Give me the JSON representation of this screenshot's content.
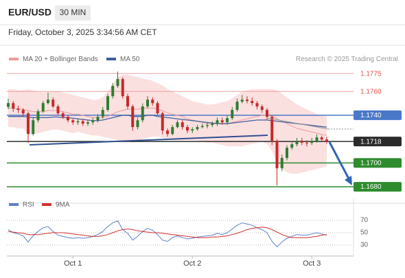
{
  "header": {
    "symbol": "EUR/USD",
    "timeframe": "30 MIN",
    "timestamp": "Friday, October 3, 2025 3:34:56 AM CET"
  },
  "chart_data": [
    {
      "type": "candlestick",
      "source": "Research © 2025 Trading Central",
      "up_color": "#2e7d32",
      "down_color": "#c62828",
      "ylim": [
        1.1672,
        1.1782
      ],
      "open": [
        1.1747,
        1.17502,
        1.17456,
        1.17445,
        1.17416,
        1.17243,
        1.17358,
        1.17433,
        1.17502,
        1.17531,
        1.17474,
        1.17416,
        1.17387,
        1.17358,
        1.17341,
        1.1735,
        1.1733,
        1.17341,
        1.17358,
        1.17387,
        1.17445,
        1.1756,
        1.17646,
        1.17704,
        1.1756,
        1.17474,
        1.17301,
        1.17358,
        1.17474,
        1.17531,
        1.17502,
        1.17416,
        1.17272,
        1.17243,
        1.17301,
        1.17341,
        1.17301,
        1.17272,
        1.17283,
        1.17301,
        1.1731,
        1.17318,
        1.1733,
        1.17358,
        1.17341,
        1.17376,
        1.17445,
        1.17514,
        1.17531,
        1.1752,
        1.17502,
        1.17474,
        1.17445,
        1.17387,
        1.17186,
        1.16955,
        1.17042,
        1.17128,
        1.17157,
        1.17186,
        1.1717,
        1.17168,
        1.17186,
        1.17214,
        1.17197
      ],
      "high": [
        1.1754,
        1.1752,
        1.1748,
        1.1746,
        1.1743,
        1.1738,
        1.1745,
        1.1752,
        1.17589,
        1.1755,
        1.1749,
        1.1743,
        1.174,
        1.1737,
        1.1737,
        1.1737,
        1.1736,
        1.1738,
        1.1741,
        1.1747,
        1.1758,
        1.1767,
        1.17767,
        1.1772,
        1.1758,
        1.1749,
        1.1738,
        1.175,
        1.1756,
        1.1755,
        1.1752,
        1.1743,
        1.1729,
        1.1732,
        1.1736,
        1.1736,
        1.1732,
        1.173,
        1.1732,
        1.1733,
        1.1734,
        1.1735,
        1.1738,
        1.1738,
        1.174,
        1.1747,
        1.1754,
        1.1757,
        1.1756,
        1.1755,
        1.1752,
        1.1749,
        1.1746,
        1.174,
        1.172,
        1.1707,
        1.1715,
        1.1718,
        1.1721,
        1.1721,
        1.1719,
        1.1721,
        1.1724,
        1.1723,
        1.1722
      ],
      "low": [
        1.1745,
        1.1743,
        1.1742,
        1.1739,
        1.17168,
        1.1723,
        1.1734,
        1.1742,
        1.1749,
        1.1746,
        1.174,
        1.1737,
        1.1734,
        1.1732,
        1.1732,
        1.1731,
        1.1731,
        1.1732,
        1.1734,
        1.1737,
        1.1743,
        1.1754,
        1.1763,
        1.1754,
        1.1745,
        1.1727,
        1.1728,
        1.1734,
        1.1746,
        1.1748,
        1.174,
        1.1724,
        1.1722,
        1.1723,
        1.1729,
        1.1728,
        1.1725,
        1.1725,
        1.1727,
        1.1729,
        1.1729,
        1.173,
        1.1731,
        1.1732,
        1.1732,
        1.1736,
        1.1743,
        1.175,
        1.175,
        1.1748,
        1.1745,
        1.1742,
        1.1736,
        1.1715,
        1.16811,
        1.1693,
        1.1702,
        1.1711,
        1.1714,
        1.1715,
        1.1714,
        1.1715,
        1.1717,
        1.1718,
        1.1716
      ],
      "close": [
        1.17502,
        1.17456,
        1.17445,
        1.17416,
        1.17243,
        1.17358,
        1.17433,
        1.17502,
        1.17531,
        1.17474,
        1.17416,
        1.17387,
        1.17358,
        1.17341,
        1.1735,
        1.1733,
        1.17341,
        1.17358,
        1.17387,
        1.17445,
        1.1756,
        1.17646,
        1.17704,
        1.1756,
        1.17474,
        1.17301,
        1.17358,
        1.17474,
        1.17531,
        1.17502,
        1.17416,
        1.17272,
        1.17243,
        1.17301,
        1.17341,
        1.17301,
        1.17272,
        1.17283,
        1.17301,
        1.1731,
        1.17318,
        1.1733,
        1.17358,
        1.17341,
        1.17376,
        1.17445,
        1.17514,
        1.17531,
        1.1752,
        1.17502,
        1.17474,
        1.17445,
        1.17387,
        1.17186,
        1.16955,
        1.17042,
        1.17128,
        1.17157,
        1.17186,
        1.1717,
        1.17168,
        1.17186,
        1.17214,
        1.17197,
        1.1718
      ],
      "series": [
        {
          "name": "MA 20 + Bollinger Bands",
          "color": "#ef9a9a",
          "values": [
            1.1746,
            1.1746,
            1.1745,
            1.1745,
            1.1744,
            1.1743,
            1.1743,
            1.1743,
            1.1744,
            1.1744,
            1.1744,
            1.1743,
            1.1742,
            1.1741,
            1.1741,
            1.174,
            1.1739,
            1.1738,
            1.1738,
            1.1738,
            1.1739,
            1.1741,
            1.1743,
            1.1744,
            1.1745,
            1.1745,
            1.1745,
            1.1746,
            1.1746,
            1.1746,
            1.1745,
            1.1744,
            1.1742,
            1.1741,
            1.174,
            1.1739,
            1.1737,
            1.1736,
            1.1735,
            1.1734,
            1.1733,
            1.1733,
            1.1733,
            1.1733,
            1.1733,
            1.1734,
            1.1735,
            1.1736,
            1.1737,
            1.1738,
            1.1739,
            1.174,
            1.174,
            1.1739,
            1.1737,
            1.1735,
            1.1733,
            1.1731,
            1.1729,
            1.1728,
            1.1727,
            1.1726,
            1.1725,
            1.1724,
            1.1723
          ]
        },
        {
          "name": "MA 50",
          "color": "#3f5f9f",
          "values": [
            1.1739,
            1.1739,
            1.1739,
            1.1739,
            1.17385,
            1.1738,
            1.1738,
            1.1738,
            1.1738,
            1.17385,
            1.17385,
            1.1738,
            1.1738,
            1.17375,
            1.1737,
            1.17365,
            1.1736,
            1.17355,
            1.17355,
            1.1736,
            1.1737,
            1.1738,
            1.1739,
            1.174,
            1.174,
            1.1739,
            1.1739,
            1.1739,
            1.174,
            1.174,
            1.1739,
            1.17385,
            1.1738,
            1.17375,
            1.1737,
            1.17365,
            1.1736,
            1.17355,
            1.1735,
            1.17345,
            1.1734,
            1.17335,
            1.1733,
            1.1733,
            1.1733,
            1.17335,
            1.1734,
            1.17345,
            1.1735,
            1.17355,
            1.1736,
            1.1736,
            1.1736,
            1.17355,
            1.1735,
            1.17345,
            1.1734,
            1.17335,
            1.1733,
            1.17325,
            1.1732,
            1.17315,
            1.1731,
            1.17305,
            1.173
          ]
        }
      ],
      "bands": {
        "color": "#f7c6c6",
        "upper": [
          1.1762,
          1.1762,
          1.1761,
          1.1761,
          1.1762,
          1.1761,
          1.176,
          1.1759,
          1.176,
          1.176,
          1.176,
          1.1759,
          1.1758,
          1.1757,
          1.1756,
          1.1755,
          1.1754,
          1.1753,
          1.1753,
          1.1755,
          1.176,
          1.1766,
          1.1772,
          1.1774,
          1.1774,
          1.1773,
          1.1772,
          1.1771,
          1.177,
          1.1769,
          1.1767,
          1.1765,
          1.1762,
          1.176,
          1.1758,
          1.1756,
          1.1754,
          1.1752,
          1.1751,
          1.175,
          1.1749,
          1.1749,
          1.175,
          1.1751,
          1.1752,
          1.1754,
          1.1757,
          1.176,
          1.1761,
          1.1762,
          1.1762,
          1.1762,
          1.1762,
          1.1762,
          1.1761,
          1.1758,
          1.1755,
          1.1752,
          1.1749,
          1.1747,
          1.1745,
          1.1743,
          1.1741,
          1.174,
          1.1739
        ],
        "lower": [
          1.173,
          1.173,
          1.1729,
          1.1729,
          1.1724,
          1.1724,
          1.1725,
          1.1726,
          1.1727,
          1.1728,
          1.1728,
          1.1727,
          1.1726,
          1.1725,
          1.1726,
          1.1725,
          1.1724,
          1.1723,
          1.1723,
          1.1722,
          1.1721,
          1.172,
          1.1719,
          1.1718,
          1.1718,
          1.1717,
          1.1718,
          1.172,
          1.1721,
          1.1722,
          1.1722,
          1.1721,
          1.172,
          1.1719,
          1.1719,
          1.1719,
          1.1719,
          1.1719,
          1.1719,
          1.1718,
          1.1717,
          1.1717,
          1.1716,
          1.1715,
          1.1714,
          1.1714,
          1.1714,
          1.1714,
          1.1715,
          1.1716,
          1.1717,
          1.1718,
          1.1716,
          1.171,
          1.17,
          1.1695,
          1.1692,
          1.1691,
          1.1691,
          1.1692,
          1.1693,
          1.1694,
          1.1695,
          1.1696,
          1.1697
        ]
      },
      "levels": [
        {
          "value": 1.1775,
          "color": "#d9534f",
          "filled": false
        },
        {
          "value": 1.176,
          "label": "1.1760",
          "color": "#d9534f",
          "filled": false
        },
        {
          "value": 1.174,
          "label": "1.1740",
          "color": "#4a78c8",
          "filled": true
        },
        {
          "value": 1.1718,
          "color": "#2b2b2b",
          "filled": true
        },
        {
          "value": 1.17,
          "label": "1.1700",
          "color": "#2e8b2e",
          "filled": true
        },
        {
          "value": 1.168,
          "label": "1.1680",
          "color": "#2e8b2e",
          "filled": true
        }
      ]
    },
    {
      "type": "line",
      "categories": [
        null,
        null,
        null,
        null,
        null,
        null,
        null,
        null,
        null,
        null,
        null,
        null,
        null,
        "Oct 1",
        null,
        null,
        null,
        null,
        null,
        null,
        null,
        null,
        null,
        null,
        null,
        null,
        null,
        null,
        null,
        null,
        null,
        null,
        null,
        null,
        null,
        null,
        null,
        "Oct 2",
        null,
        null,
        null,
        null,
        null,
        null,
        null,
        null,
        null,
        null,
        null,
        null,
        null,
        null,
        null,
        null,
        null,
        null,
        null,
        null,
        null,
        null,
        null,
        "Oct 3",
        null,
        null,
        null
      ],
      "ylim": [
        15,
        80
      ],
      "yticks": [
        30,
        50,
        70
      ],
      "grid": true,
      "series": [
        {
          "name": "RSI",
          "color": "#5b7fc7",
          "values": [
            55,
            50,
            48,
            45,
            35,
            45,
            52,
            58,
            60,
            52,
            46,
            44,
            42,
            41,
            42,
            41,
            42,
            44,
            47,
            52,
            60,
            66,
            69,
            55,
            49,
            38,
            44,
            52,
            57,
            54,
            47,
            38,
            36,
            42,
            45,
            42,
            40,
            41,
            43,
            44,
            45,
            46,
            49,
            47,
            50,
            56,
            62,
            66,
            64,
            62,
            58,
            55,
            50,
            36,
            27,
            35,
            41,
            44,
            47,
            46,
            46,
            48,
            50,
            48,
            46
          ]
        },
        {
          "name": "9MA",
          "color": "#d32f2f",
          "values": [
            52,
            51,
            50,
            49,
            47,
            47,
            47,
            48,
            49,
            50,
            50,
            50,
            49,
            48,
            47,
            46,
            45,
            44,
            44,
            45,
            47,
            50,
            53,
            55,
            56,
            55,
            53,
            52,
            51,
            50,
            50,
            49,
            48,
            47,
            46,
            45,
            44,
            43,
            42,
            42,
            42,
            43,
            43,
            44,
            45,
            47,
            49,
            52,
            55,
            57,
            58,
            59,
            58,
            55,
            51,
            47,
            44,
            42,
            42,
            42,
            42,
            43,
            44,
            46,
            47
          ]
        }
      ]
    }
  ]
}
